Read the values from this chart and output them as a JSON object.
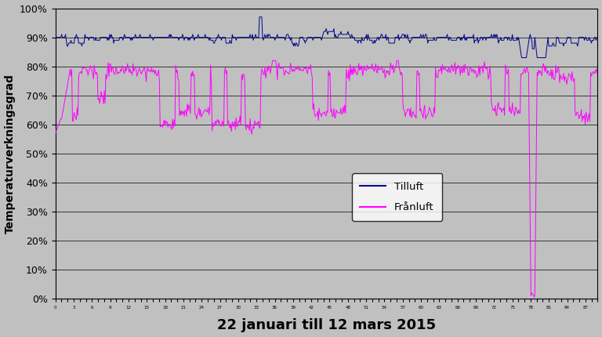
{
  "title": "22 januari till 12 mars 2015",
  "ylabel": "Temperaturverkningsgrad",
  "ylim": [
    0,
    1.0
  ],
  "yticks": [
    0,
    0.1,
    0.2,
    0.3,
    0.4,
    0.5,
    0.6,
    0.7,
    0.8,
    0.9,
    1.0
  ],
  "ytick_labels": [
    "0%",
    "10%",
    "20%",
    "30%",
    "40%",
    "50%",
    "60%",
    "70%",
    "80%",
    "90%",
    "100%"
  ],
  "outer_bg_color": "#C0C0C0",
  "plot_bg_color": "#C0C0C0",
  "tilluft_color": "#00008B",
  "franluft_color": "#FF00FF",
  "legend_tilluft": "Tilluft",
  "legend_franluft": "Frånluft",
  "n_points": 700,
  "title_fontsize": 13,
  "ylabel_fontsize": 10
}
